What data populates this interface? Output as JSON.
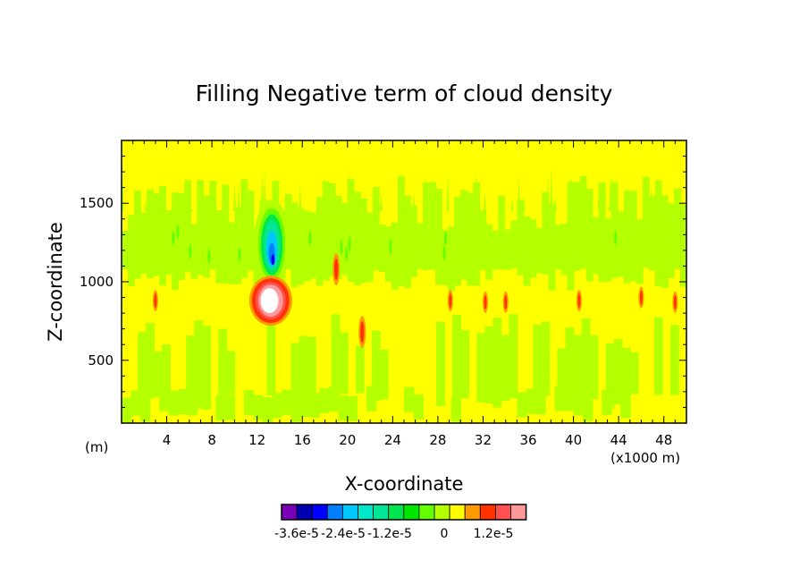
{
  "chart_data": {
    "type": "heatmap",
    "title": "Filling Negative term of cloud density",
    "xlabel": "X-coordinate",
    "ylabel": "Z-coordinate",
    "x_unit_left": "(m)",
    "x_unit_right": "(x1000 m)",
    "xlim": [
      0,
      50
    ],
    "ylim": [
      100,
      1900
    ],
    "xticks": [
      4,
      8,
      12,
      16,
      20,
      24,
      28,
      32,
      36,
      40,
      44,
      48
    ],
    "yticks": [
      500,
      1000,
      1500
    ],
    "features": [
      {
        "region": "core-positive",
        "x": 13.2,
        "z": 880,
        "value": 1.8e-05
      },
      {
        "region": "core-negative",
        "x": 13.3,
        "z": 1250,
        "value": -3e-05
      },
      {
        "region": "spot",
        "x": 21.3,
        "z": 680,
        "value": 1.2e-05
      },
      {
        "region": "spot",
        "x": 19.0,
        "z": 1080,
        "value": 1e-05
      },
      {
        "region": "spot",
        "x": 29.1,
        "z": 880,
        "value": 8e-06
      },
      {
        "region": "spot",
        "x": 32.2,
        "z": 870,
        "value": 8e-06
      },
      {
        "region": "spot",
        "x": 34.0,
        "z": 870,
        "value": 6e-06
      },
      {
        "region": "spot",
        "x": 40.5,
        "z": 880,
        "value": 6e-06
      },
      {
        "region": "spot",
        "x": 3.0,
        "z": 880,
        "value": 4e-06
      },
      {
        "region": "spot",
        "x": 46.0,
        "z": 900,
        "value": 4e-06
      },
      {
        "region": "spot",
        "x": 49.0,
        "z": 870,
        "value": 6e-06
      }
    ],
    "colorbar": {
      "colors": [
        "#7a00b8",
        "#0000b0",
        "#0000ff",
        "#0080ff",
        "#00c8ff",
        "#00e6c8",
        "#00e696",
        "#00e650",
        "#00e600",
        "#64ff00",
        "#b4ff00",
        "#ffff00",
        "#ff9900",
        "#ff3300",
        "#ff5050",
        "#ff9999"
      ],
      "labels": [
        "-3.6e-5",
        "-2.4e-5",
        "-1.2e-5",
        "0",
        "1.2e-5"
      ]
    }
  }
}
